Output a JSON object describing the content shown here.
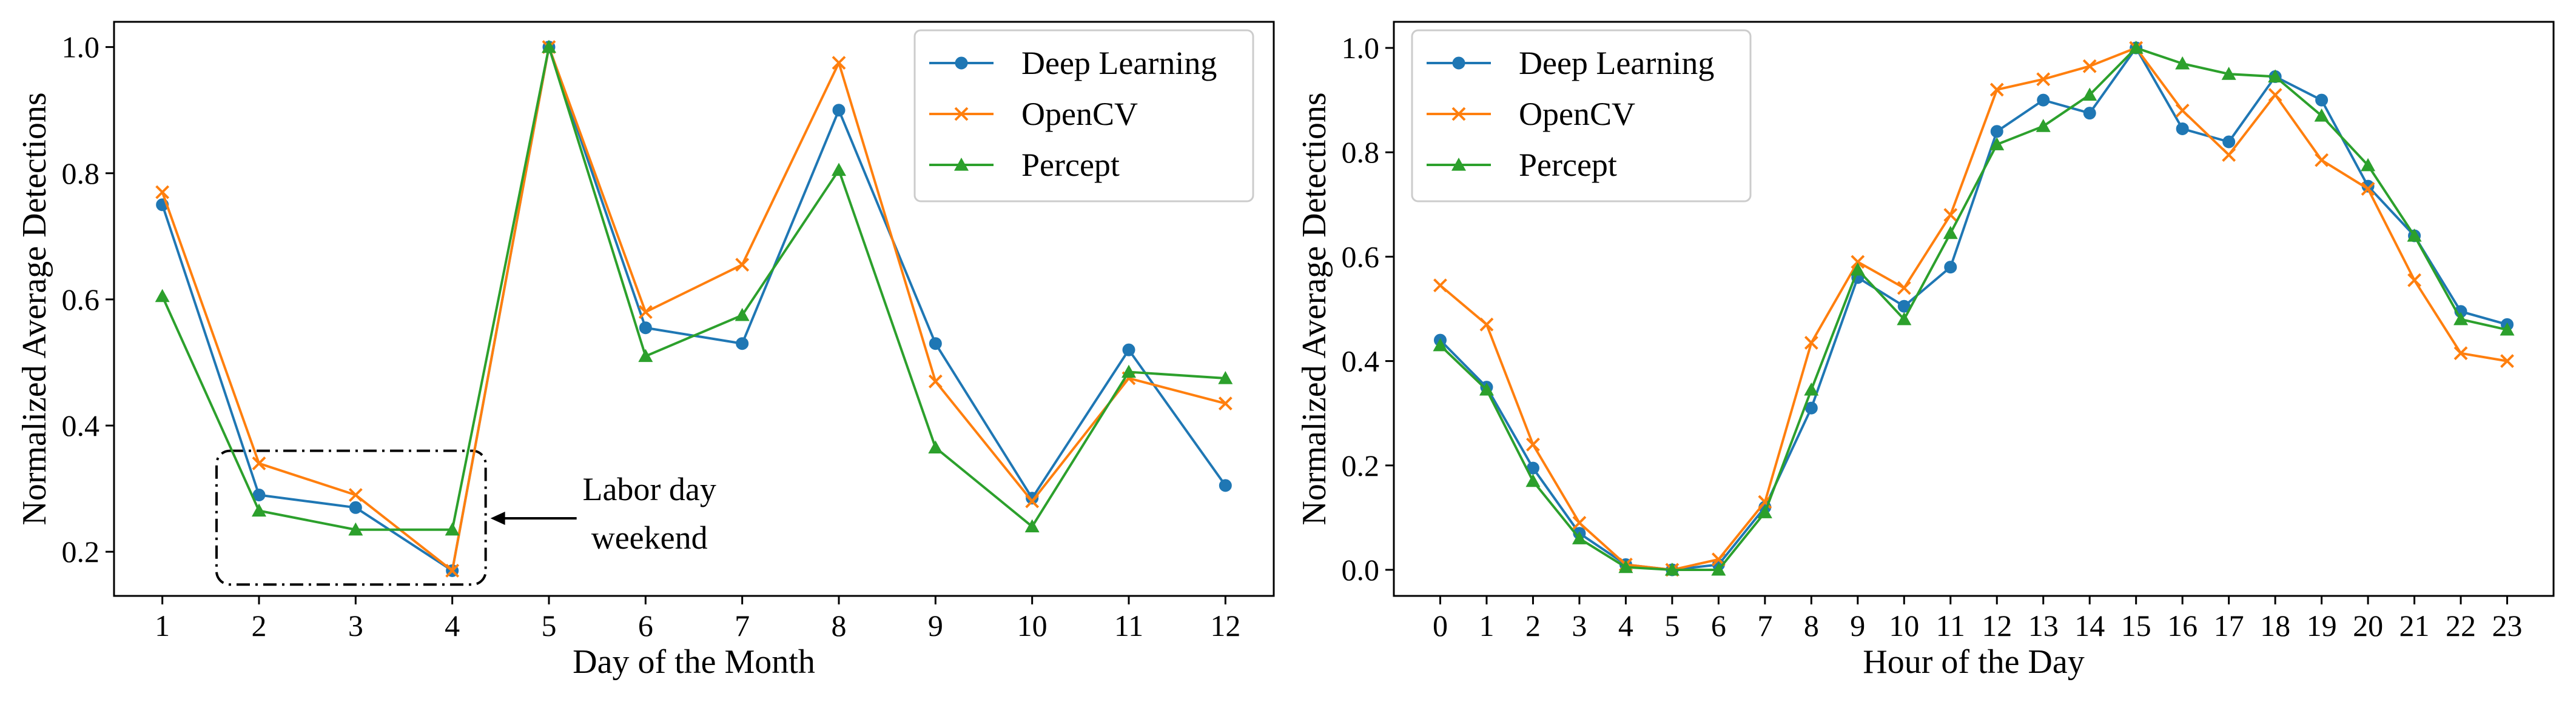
{
  "chart_data": [
    {
      "type": "line",
      "title": "",
      "xlabel": "Day of the Month",
      "ylabel": "Normalized Average Detections",
      "x": [
        1,
        2,
        3,
        4,
        5,
        6,
        7,
        8,
        9,
        10,
        11,
        12
      ],
      "x_ticks": [
        "1",
        "2",
        "3",
        "4",
        "5",
        "6",
        "7",
        "8",
        "9",
        "10",
        "11",
        "12"
      ],
      "y_ticks": [
        "0.2",
        "0.4",
        "0.6",
        "0.8",
        "1.0"
      ],
      "y_tick_values": [
        0.2,
        0.4,
        0.6,
        0.8,
        1.0
      ],
      "xlim": [
        0.5,
        12.5
      ],
      "ylim": [
        0.13,
        1.04
      ],
      "grid": false,
      "legend_position": "top-right",
      "series": [
        {
          "name": "Deep Learning",
          "color": "#1f77b4",
          "marker": "circle",
          "values": [
            0.75,
            0.29,
            0.27,
            0.17,
            1.0,
            0.555,
            0.53,
            0.9,
            0.53,
            0.285,
            0.52,
            0.305
          ]
        },
        {
          "name": "OpenCV",
          "color": "#ff7f0e",
          "marker": "x",
          "values": [
            0.77,
            0.34,
            0.29,
            0.17,
            1.0,
            0.58,
            0.655,
            0.975,
            0.47,
            0.28,
            0.475,
            0.435
          ]
        },
        {
          "name": "Percept",
          "color": "#2ca02c",
          "marker": "triangle",
          "values": [
            0.605,
            0.265,
            0.235,
            0.235,
            1.0,
            0.51,
            0.575,
            0.805,
            0.365,
            0.24,
            0.485,
            0.475
          ]
        }
      ],
      "annotation": {
        "text_line1": "Labor day",
        "text_line2": "weekend",
        "x_range": [
          2,
          4
        ]
      }
    },
    {
      "type": "line",
      "title": "",
      "xlabel": "Hour of the Day",
      "ylabel": "Normalized Average Detections",
      "x": [
        0,
        1,
        2,
        3,
        4,
        5,
        6,
        7,
        8,
        9,
        10,
        11,
        12,
        13,
        14,
        15,
        16,
        17,
        18,
        19,
        20,
        21,
        22,
        23
      ],
      "x_ticks": [
        "0",
        "1",
        "2",
        "3",
        "4",
        "5",
        "6",
        "7",
        "8",
        "9",
        "10",
        "11",
        "12",
        "13",
        "14",
        "15",
        "16",
        "17",
        "18",
        "19",
        "20",
        "21",
        "22",
        "23"
      ],
      "y_ticks": [
        "0.0",
        "0.2",
        "0.4",
        "0.6",
        "0.8",
        "1.0"
      ],
      "y_tick_values": [
        0.0,
        0.2,
        0.4,
        0.6,
        0.8,
        1.0
      ],
      "xlim": [
        -1,
        24
      ],
      "ylim": [
        -0.05,
        1.05
      ],
      "grid": false,
      "legend_position": "top-left",
      "series": [
        {
          "name": "Deep Learning",
          "color": "#1f77b4",
          "marker": "circle",
          "values": [
            0.44,
            0.35,
            0.195,
            0.07,
            0.01,
            0.0,
            0.01,
            0.12,
            0.31,
            0.56,
            0.505,
            0.58,
            0.84,
            0.9,
            0.875,
            1.0,
            0.845,
            0.82,
            0.945,
            0.9,
            0.735,
            0.64,
            0.495,
            0.47
          ]
        },
        {
          "name": "OpenCV",
          "color": "#ff7f0e",
          "marker": "x",
          "values": [
            0.545,
            0.47,
            0.24,
            0.09,
            0.01,
            0.0,
            0.02,
            0.13,
            0.435,
            0.59,
            0.54,
            0.68,
            0.92,
            0.94,
            0.965,
            1.0,
            0.88,
            0.795,
            0.91,
            0.785,
            0.73,
            0.555,
            0.415,
            0.4
          ]
        },
        {
          "name": "Percept",
          "color": "#2ca02c",
          "marker": "triangle",
          "values": [
            0.43,
            0.345,
            0.17,
            0.06,
            0.005,
            0.0,
            0.0,
            0.11,
            0.345,
            0.575,
            0.48,
            0.645,
            0.815,
            0.85,
            0.91,
            1.0,
            0.97,
            0.95,
            0.945,
            0.87,
            0.775,
            0.64,
            0.48,
            0.46
          ]
        }
      ]
    }
  ]
}
